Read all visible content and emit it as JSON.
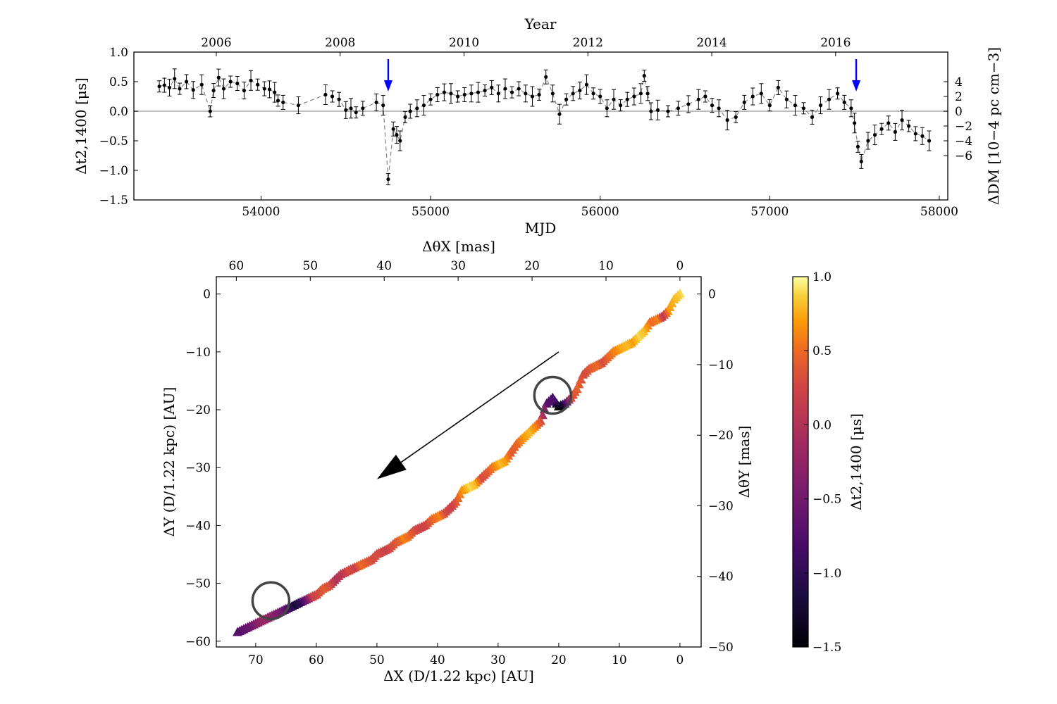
{
  "chart_data": [
    {
      "type": "scatter",
      "panel": "timing-residuals",
      "xlabel": "MJD",
      "xlim": [
        53250,
        58050
      ],
      "xticks": [
        54000,
        55000,
        56000,
        57000,
        58000
      ],
      "ylabel": "Δt2,1400 [μs]",
      "ylim": [
        -1.5,
        1.0
      ],
      "yticks": [
        "−1.5",
        "−1.0",
        "−0.5",
        "0.0",
        "0.5",
        "1.0"
      ],
      "top_axis": {
        "label": "Year",
        "ticks": [
          "2006",
          "2008",
          "2010",
          "2012",
          "2014",
          "2016"
        ]
      },
      "right_axis": {
        "label": "ΔDM [10−4 pc cm−3]",
        "ticks": [
          "−6",
          "−4",
          "−2",
          "0",
          "2",
          "4"
        ]
      },
      "reference_line_y": 0.0,
      "arrows_at_mjd": [
        54750,
        57510
      ],
      "arrow_color": "#0000ff",
      "series": [
        {
          "x": [
            53400,
            53430,
            53460,
            53490,
            53520,
            53560,
            53600,
            53650,
            53700,
            53720,
            53750,
            53780,
            53820,
            53860,
            53900,
            53940,
            53980,
            54020,
            54050,
            54080,
            54100,
            54130,
            54220,
            54380,
            54420,
            54460,
            54500,
            54530,
            54560,
            54600,
            54680,
            54720,
            54750,
            54780,
            54800,
            54820,
            54850,
            54880,
            54920,
            54960,
            55000,
            55040,
            55080,
            55120,
            55160,
            55200,
            55240,
            55280,
            55320,
            55360,
            55400,
            55440,
            55480,
            55520,
            55560,
            55600,
            55640,
            55680,
            55720,
            55760,
            55800,
            55840,
            55880,
            55920,
            55960,
            56000,
            56040,
            56080,
            56120,
            56160,
            56200,
            56240,
            56260,
            56280,
            56300,
            56340,
            56400,
            56460,
            56520,
            56580,
            56620,
            56660,
            56700,
            56750,
            56800,
            56850,
            56900,
            56950,
            57000,
            57050,
            57100,
            57150,
            57200,
            57250,
            57300,
            57350,
            57400,
            57440,
            57480,
            57500,
            57520,
            57540,
            57580,
            57620,
            57660,
            57700,
            57740,
            57780,
            57820,
            57860,
            57900,
            57940
          ],
          "y": [
            0.42,
            0.44,
            0.4,
            0.55,
            0.38,
            0.5,
            0.36,
            0.45,
            0.0,
            0.35,
            0.57,
            0.38,
            0.5,
            0.47,
            0.35,
            0.52,
            0.45,
            0.38,
            0.37,
            0.32,
            0.18,
            0.15,
            0.1,
            0.28,
            0.25,
            0.2,
            0.02,
            0.05,
            -0.02,
            0.05,
            0.15,
            0.1,
            -1.15,
            -0.3,
            -0.4,
            -0.5,
            -0.1,
            0.0,
            0.05,
            0.1,
            0.2,
            0.28,
            0.32,
            0.3,
            0.25,
            0.28,
            0.3,
            0.32,
            0.35,
            0.4,
            0.3,
            0.38,
            0.32,
            0.38,
            0.3,
            0.25,
            0.28,
            0.58,
            0.3,
            -0.05,
            0.2,
            0.3,
            0.35,
            0.45,
            0.3,
            0.25,
            0.05,
            0.2,
            0.1,
            0.2,
            0.25,
            0.3,
            0.6,
            0.3,
            0.0,
            0.02,
            0.0,
            0.05,
            0.12,
            0.2,
            0.25,
            0.1,
            0.05,
            -0.15,
            -0.1,
            0.15,
            0.25,
            0.3,
            0.1,
            0.4,
            0.2,
            0.1,
            0.05,
            -0.1,
            0.1,
            0.2,
            0.3,
            0.15,
            0.05,
            -0.2,
            -0.6,
            -0.85,
            -0.5,
            -0.4,
            -0.3,
            -0.2,
            -0.35,
            -0.15,
            -0.25,
            -0.38,
            -0.42,
            -0.5
          ]
        }
      ]
    },
    {
      "type": "scatter",
      "panel": "scintillation-track",
      "xlabel": "ΔX (D/1.22 kpc) [AU]",
      "ylabel": "ΔY (D/1.22 kpc) [AU]",
      "xlim": [
        76.5,
        -3.5
      ],
      "ylim": [
        -61,
        3
      ],
      "xticks": [
        70,
        60,
        50,
        40,
        30,
        20,
        10,
        0
      ],
      "yticks": [
        "0",
        "−10",
        "−20",
        "−30",
        "−40",
        "−50",
        "−60"
      ],
      "top_axis": {
        "label": "ΔθX [mas]",
        "ticks": [
          60,
          50,
          40,
          30,
          20,
          10,
          0
        ]
      },
      "right_axis": {
        "label": "ΔθY [mas]",
        "ticks": [
          "0",
          "−10",
          "−20",
          "−30",
          "−40",
          "−50"
        ]
      },
      "marker": "triangle",
      "colorbar": {
        "label": "Δt2,1400 [μs]",
        "range": [
          -1.5,
          1.0
        ],
        "ticks": [
          "1.0",
          "0.5",
          "0.0",
          "−0.5",
          "−1.0",
          "−1.5"
        ],
        "colormap": "inferno"
      },
      "circles_around": [
        [
          21,
          -17.5
        ],
        [
          67.5,
          -53
        ]
      ],
      "direction_arrow": {
        "from": [
          20,
          -10
        ],
        "to": [
          50,
          -32
        ]
      },
      "series": [
        {
          "x": [
            0,
            1,
            2,
            3,
            4,
            5,
            6,
            7,
            8,
            9,
            10,
            11,
            12,
            13,
            14,
            15,
            16,
            17,
            18,
            19,
            20,
            21,
            22,
            23,
            24,
            25,
            26,
            27,
            28,
            29,
            30,
            31,
            32,
            33,
            34,
            35,
            36,
            37,
            38,
            39,
            40,
            41,
            42,
            43,
            44,
            45,
            46,
            47,
            48,
            49,
            50,
            51,
            52,
            53,
            54,
            55,
            56,
            57,
            58,
            59,
            60,
            61,
            62,
            63,
            64,
            65,
            66,
            67,
            68,
            69,
            70,
            71,
            72,
            73
          ],
          "y": [
            0,
            -1,
            -3,
            -4,
            -4.5,
            -5,
            -6.5,
            -7.5,
            -8.5,
            -9,
            -9.5,
            -10,
            -11,
            -12,
            -12.5,
            -13,
            -14,
            -16.5,
            -18,
            -19,
            -19.5,
            -18,
            -19,
            -22,
            -23,
            -24,
            -25,
            -26,
            -27.5,
            -29,
            -29.5,
            -30,
            -31,
            -32,
            -33,
            -33.5,
            -34,
            -36,
            -37,
            -38,
            -38.5,
            -39,
            -40,
            -40.5,
            -41,
            -42,
            -42.5,
            -43,
            -44,
            -44.5,
            -45,
            -46,
            -46.5,
            -47,
            -47.5,
            -48,
            -48.5,
            -49.5,
            -50.5,
            -51,
            -52,
            -52.5,
            -53,
            -53.5,
            -54,
            -54.5,
            -55,
            -55.5,
            -56,
            -56.5,
            -57,
            -57.5,
            -58,
            -58.5
          ],
          "c": [
            0.9,
            0.8,
            0.7,
            0.1,
            0.6,
            0.5,
            0.8,
            0.9,
            0.7,
            0.8,
            0.75,
            0.6,
            0.5,
            0.3,
            0.5,
            0.4,
            0.3,
            0.45,
            0.3,
            -0.6,
            -1.5,
            -0.8,
            -0.7,
            0.3,
            0.6,
            0.8,
            0.7,
            0.5,
            0.4,
            0.7,
            0.8,
            0.6,
            0.4,
            0.3,
            0.8,
            0.9,
            0.7,
            0.4,
            0.2,
            0.3,
            0.6,
            0.5,
            0.3,
            0.2,
            0.3,
            0.5,
            0.6,
            0.4,
            0.3,
            0.2,
            0.3,
            0.3,
            0.4,
            0.5,
            0.2,
            0.3,
            0.1,
            0.0,
            0.3,
            0.4,
            0.3,
            0.2,
            -0.5,
            -1.0,
            -1.2,
            -0.8,
            -0.5,
            -0.4,
            -0.3,
            -0.2,
            -0.3,
            -0.5,
            -0.6,
            -0.7
          ]
        }
      ]
    }
  ]
}
